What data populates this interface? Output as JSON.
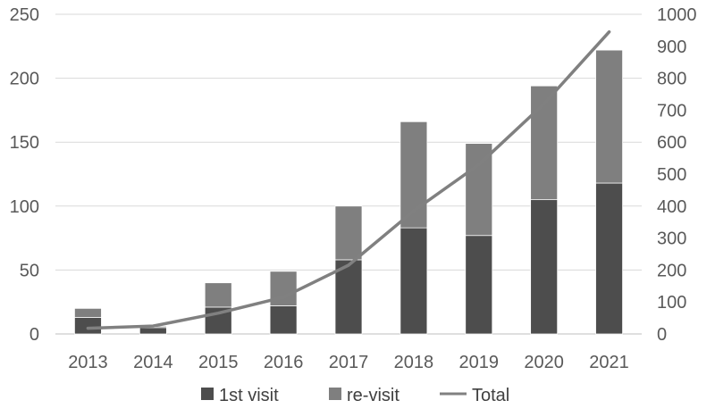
{
  "chart_data": {
    "type": "bar",
    "stacked": true,
    "categories": [
      "2013",
      "2014",
      "2015",
      "2016",
      "2017",
      "2018",
      "2019",
      "2020",
      "2021"
    ],
    "series": [
      {
        "name": "1st visit",
        "type": "bar",
        "axis": "left",
        "color": "#4d4d4d",
        "values": [
          13,
          5,
          21,
          22,
          58,
          83,
          77,
          105,
          118
        ]
      },
      {
        "name": "re-visit",
        "type": "bar",
        "axis": "left",
        "color": "#7f7f7f",
        "values": [
          7,
          1,
          19,
          27,
          42,
          83,
          72,
          89,
          104
        ]
      },
      {
        "name": "Total",
        "type": "line",
        "axis": "right",
        "color": "#808080",
        "values": [
          18,
          25,
          65,
          115,
          215,
          385,
          530,
          720,
          945
        ]
      }
    ],
    "y_left": {
      "min": 0,
      "max": 250,
      "ticks": [
        "0",
        "50",
        "100",
        "150",
        "200",
        "250"
      ]
    },
    "y_right": {
      "min": 0,
      "max": 1000,
      "ticks": [
        "0",
        "100",
        "200",
        "300",
        "400",
        "500",
        "600",
        "700",
        "800",
        "900",
        "1000"
      ]
    },
    "grid": true,
    "legend_position": "bottom"
  }
}
